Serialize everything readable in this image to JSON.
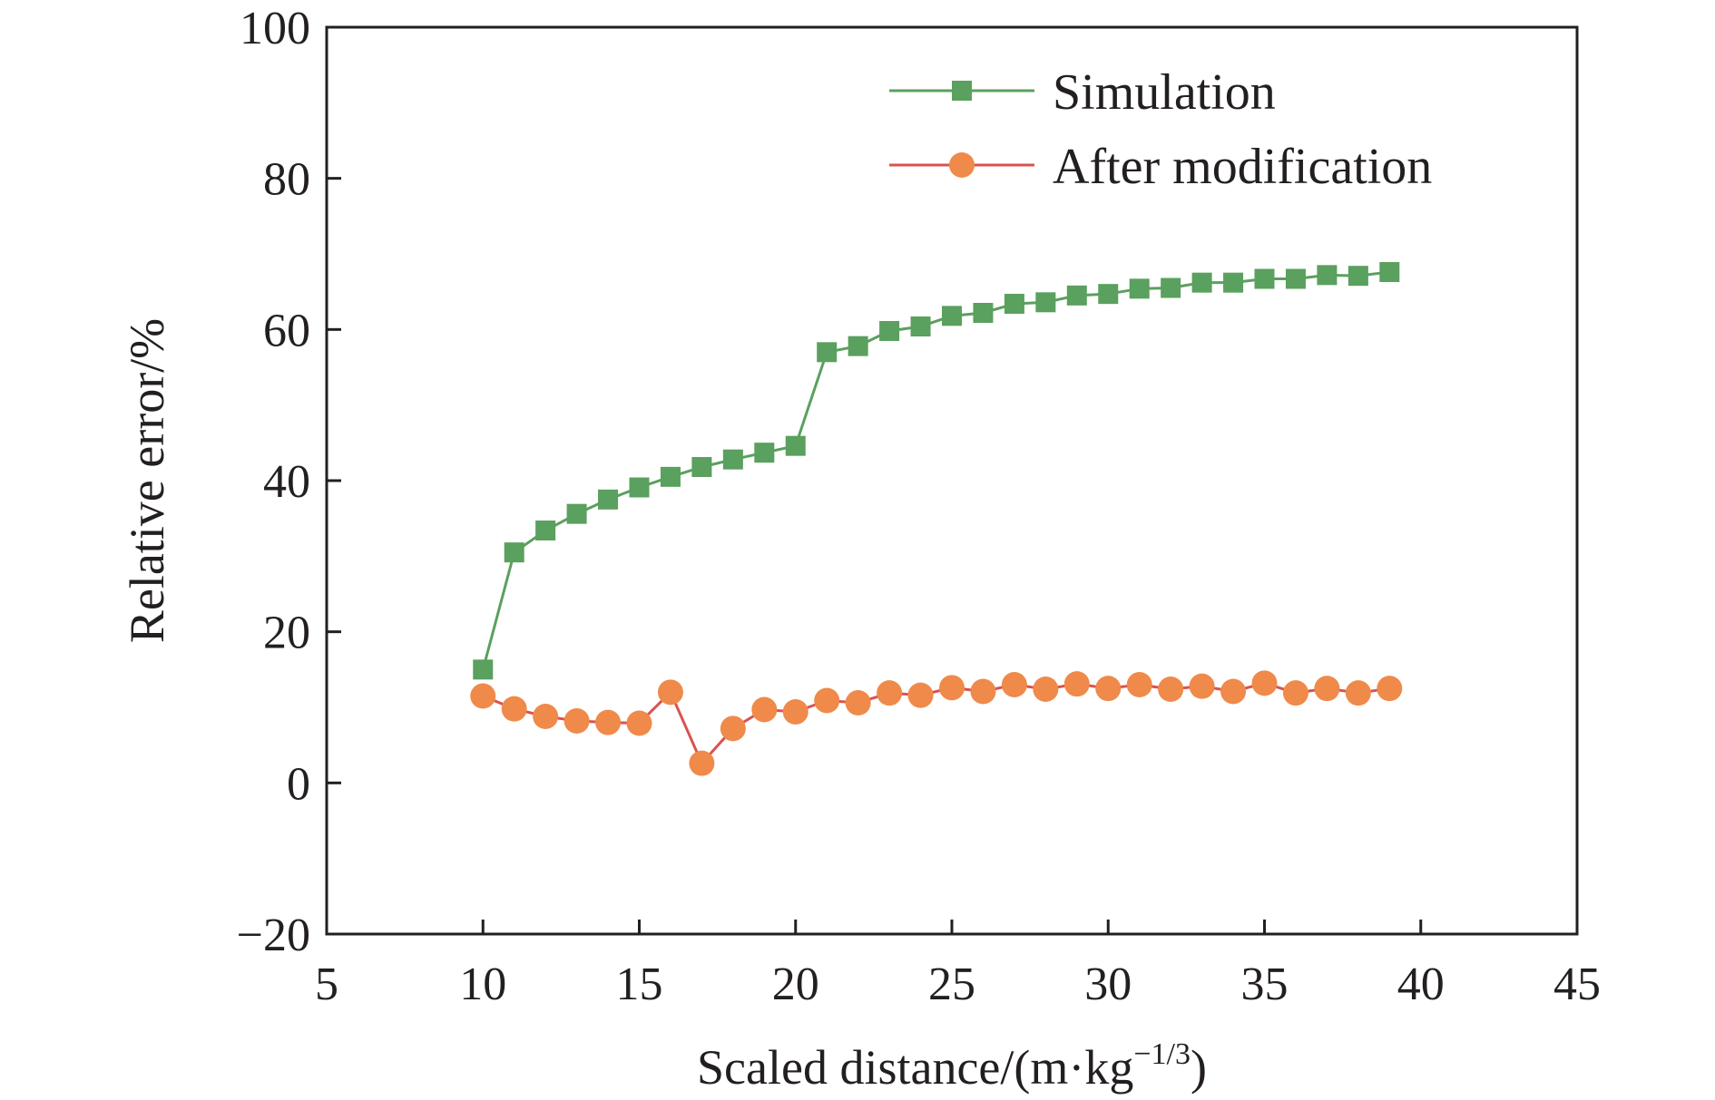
{
  "chart_data": {
    "type": "line",
    "title": "",
    "xlabel": "Scaled distance/(m·kg",
    "xlabel_sup": "−1/3",
    "xlabel_close": ")",
    "ylabel": "Relative error/%",
    "xlim": [
      5,
      45
    ],
    "ylim": [
      -20,
      100
    ],
    "xticks": [
      5,
      10,
      15,
      20,
      25,
      30,
      35,
      40,
      45
    ],
    "yticks": [
      -20,
      0,
      20,
      40,
      60,
      80,
      100
    ],
    "xtick_labels": [
      "5",
      "10",
      "15",
      "20",
      "25",
      "30",
      "35",
      "40",
      "45"
    ],
    "ytick_labels": [
      "−20",
      "0",
      "20",
      "40",
      "60",
      "80",
      "100"
    ],
    "grid": false,
    "legend_position": "top-right",
    "x": [
      10,
      11,
      12,
      13,
      14,
      15,
      16,
      17,
      18,
      19,
      20,
      21,
      22,
      23,
      24,
      25,
      26,
      27,
      28,
      29,
      30,
      31,
      32,
      33,
      34,
      35,
      36,
      37,
      38,
      39
    ],
    "series": [
      {
        "name": "Simulation",
        "marker": "square",
        "line_color": "#5aa05e",
        "marker_color": "#5aa05e",
        "values": [
          15.0,
          30.5,
          33.4,
          35.6,
          37.5,
          39.1,
          40.5,
          41.8,
          42.8,
          43.7,
          44.6,
          57.0,
          57.8,
          59.8,
          60.4,
          61.8,
          62.2,
          63.4,
          63.6,
          64.5,
          64.7,
          65.4,
          65.5,
          66.2,
          66.2,
          66.7,
          66.7,
          67.2,
          67.1,
          67.6
        ]
      },
      {
        "name": "After modification",
        "marker": "circle",
        "line_color": "#d9534f",
        "marker_color": "#ef8a4a",
        "values": [
          11.5,
          9.8,
          8.8,
          8.2,
          8.0,
          7.9,
          12.0,
          2.6,
          7.2,
          9.7,
          9.4,
          10.9,
          10.6,
          11.9,
          11.6,
          12.6,
          12.1,
          13.0,
          12.4,
          13.1,
          12.5,
          13.0,
          12.4,
          12.8,
          12.1,
          13.2,
          11.9,
          12.5,
          11.9,
          12.5
        ]
      }
    ]
  }
}
